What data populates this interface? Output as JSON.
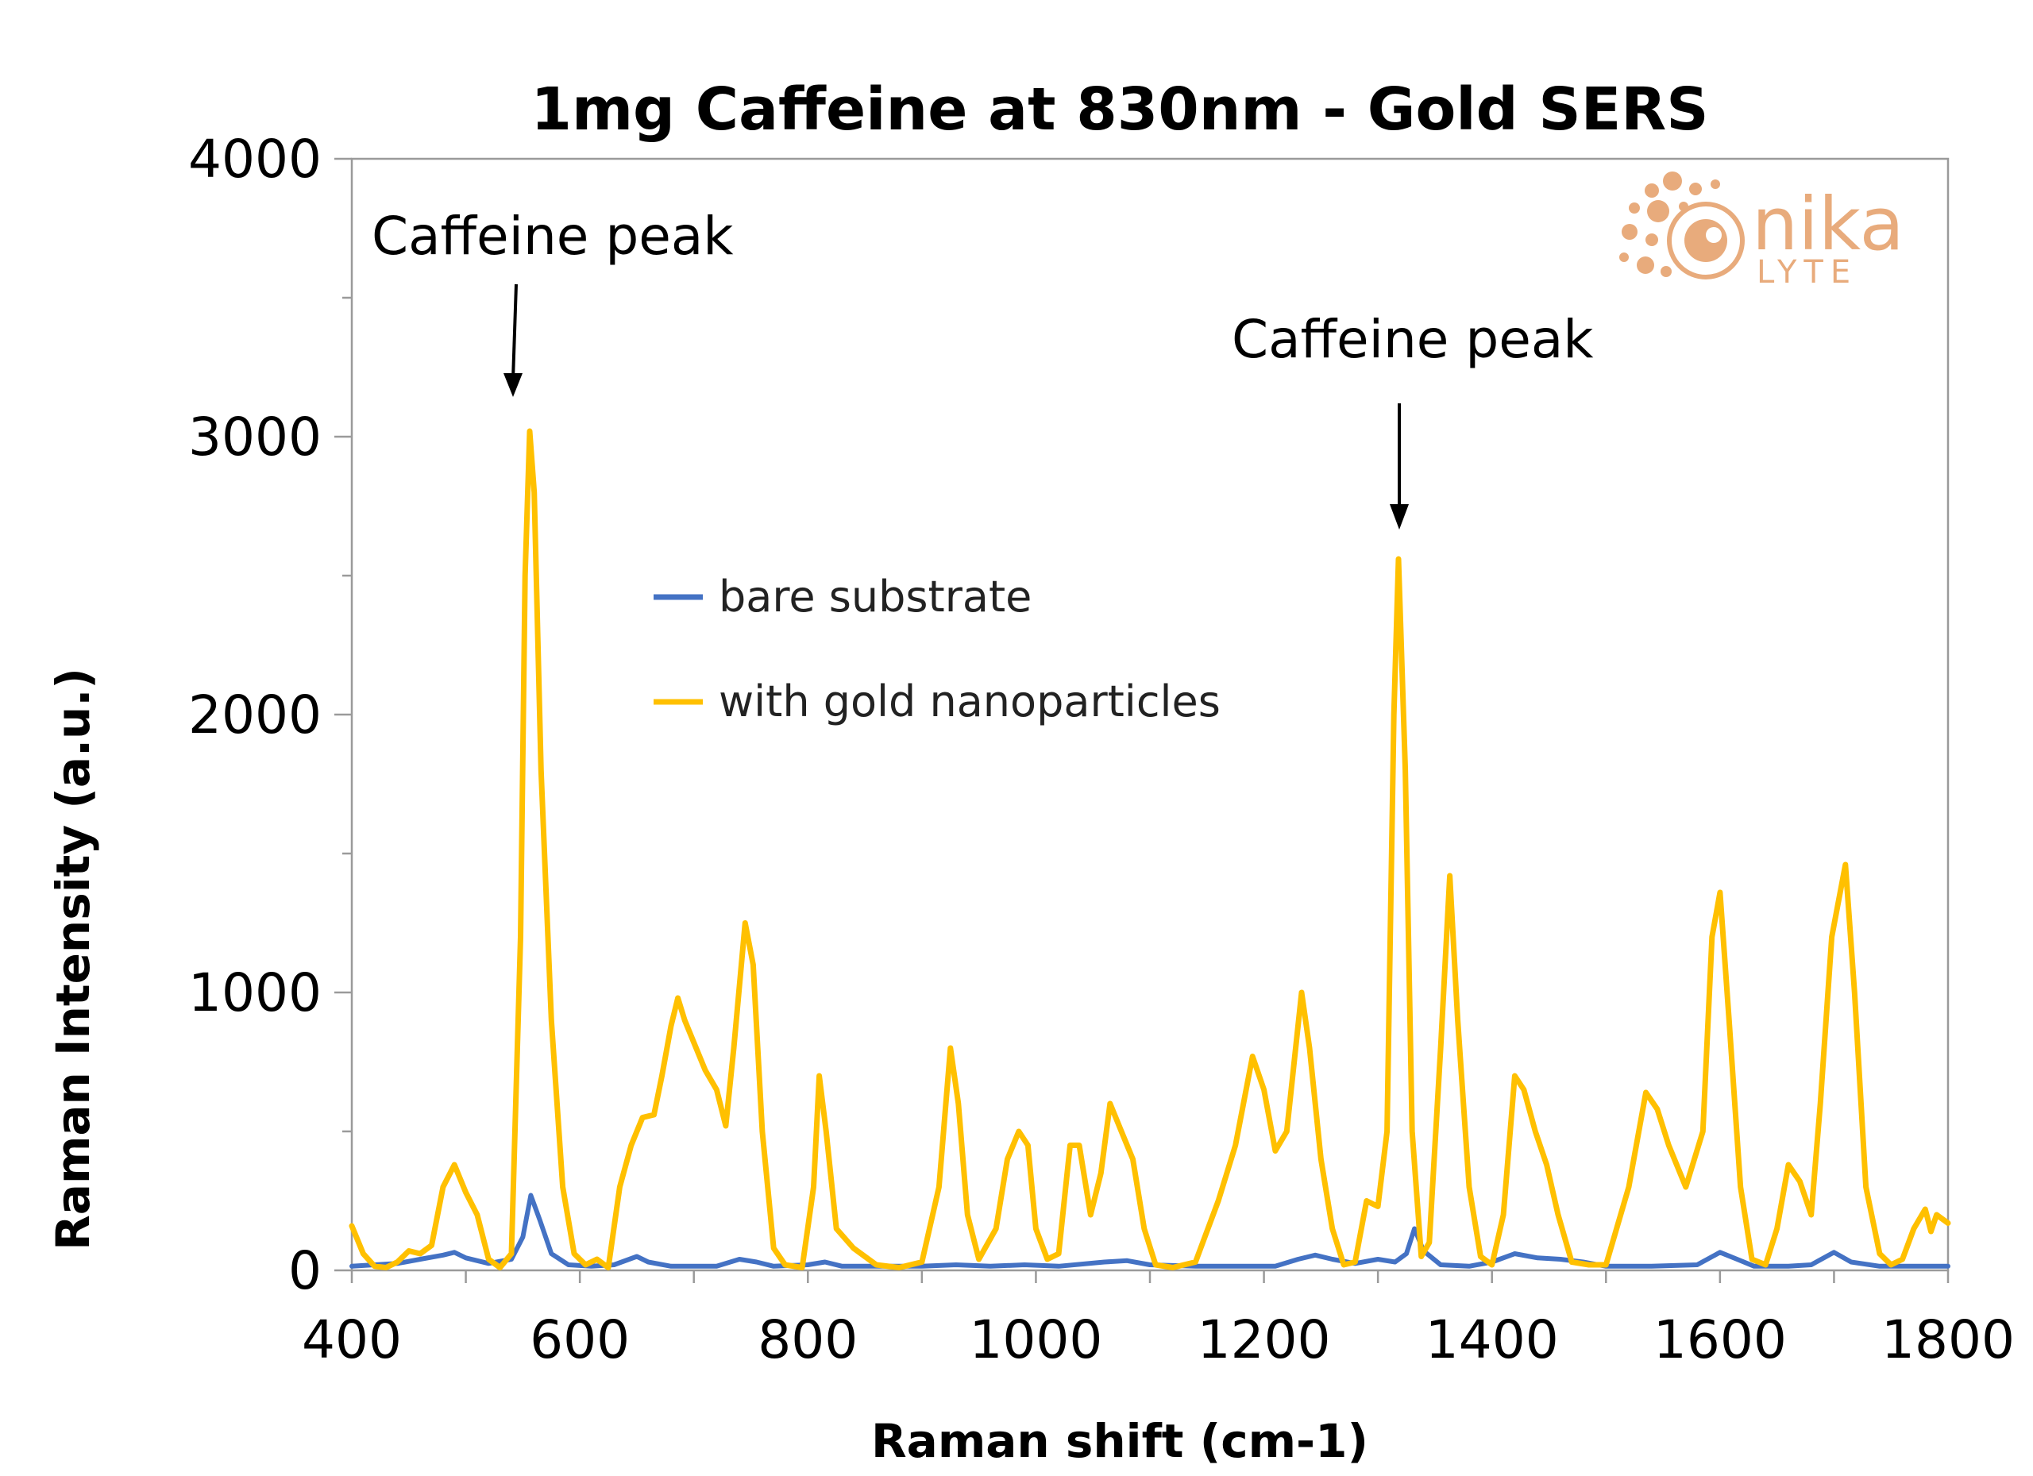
{
  "chart_data": {
    "type": "line",
    "title": "1mg Caffeine at 830nm - Gold SERS",
    "xlabel": "Raman shift  (cm-1)",
    "ylabel": "Raman Intensity (a.u.)",
    "xlim": [
      400,
      1800
    ],
    "ylim": [
      0,
      4000
    ],
    "x_ticks": [
      400,
      600,
      800,
      1000,
      1200,
      1400,
      1600,
      1800
    ],
    "y_ticks": [
      0,
      1000,
      2000,
      3000,
      4000
    ],
    "y_minor_ticks": [
      500,
      1500,
      2500,
      3500
    ],
    "grid": false,
    "legend_position": "center-left",
    "series": [
      {
        "name": "bare substrate",
        "color": "#4472c4",
        "points": [
          [
            400,
            15
          ],
          [
            420,
            20
          ],
          [
            440,
            25
          ],
          [
            460,
            40
          ],
          [
            480,
            55
          ],
          [
            490,
            65
          ],
          [
            500,
            45
          ],
          [
            520,
            25
          ],
          [
            540,
            40
          ],
          [
            550,
            120
          ],
          [
            557,
            270
          ],
          [
            565,
            180
          ],
          [
            575,
            60
          ],
          [
            590,
            20
          ],
          [
            610,
            15
          ],
          [
            630,
            20
          ],
          [
            650,
            50
          ],
          [
            660,
            30
          ],
          [
            680,
            15
          ],
          [
            700,
            15
          ],
          [
            720,
            15
          ],
          [
            740,
            40
          ],
          [
            755,
            30
          ],
          [
            770,
            15
          ],
          [
            800,
            20
          ],
          [
            815,
            30
          ],
          [
            830,
            15
          ],
          [
            860,
            15
          ],
          [
            900,
            15
          ],
          [
            930,
            20
          ],
          [
            960,
            15
          ],
          [
            990,
            20
          ],
          [
            1020,
            15
          ],
          [
            1060,
            30
          ],
          [
            1080,
            35
          ],
          [
            1100,
            20
          ],
          [
            1140,
            15
          ],
          [
            1180,
            15
          ],
          [
            1210,
            15
          ],
          [
            1230,
            40
          ],
          [
            1245,
            55
          ],
          [
            1260,
            40
          ],
          [
            1280,
            25
          ],
          [
            1300,
            40
          ],
          [
            1315,
            30
          ],
          [
            1325,
            60
          ],
          [
            1332,
            150
          ],
          [
            1340,
            70
          ],
          [
            1355,
            20
          ],
          [
            1380,
            15
          ],
          [
            1400,
            30
          ],
          [
            1420,
            60
          ],
          [
            1440,
            45
          ],
          [
            1460,
            40
          ],
          [
            1480,
            30
          ],
          [
            1500,
            15
          ],
          [
            1540,
            15
          ],
          [
            1580,
            20
          ],
          [
            1600,
            65
          ],
          [
            1615,
            40
          ],
          [
            1630,
            15
          ],
          [
            1660,
            15
          ],
          [
            1680,
            20
          ],
          [
            1700,
            65
          ],
          [
            1715,
            30
          ],
          [
            1740,
            15
          ],
          [
            1770,
            15
          ],
          [
            1800,
            15
          ]
        ]
      },
      {
        "name": "with gold nanoparticles",
        "color": "#ffc000",
        "points": [
          [
            400,
            160
          ],
          [
            410,
            60
          ],
          [
            420,
            15
          ],
          [
            430,
            10
          ],
          [
            440,
            30
          ],
          [
            450,
            70
          ],
          [
            460,
            60
          ],
          [
            470,
            90
          ],
          [
            480,
            300
          ],
          [
            490,
            380
          ],
          [
            500,
            280
          ],
          [
            510,
            200
          ],
          [
            520,
            40
          ],
          [
            530,
            10
          ],
          [
            540,
            60
          ],
          [
            548,
            1200
          ],
          [
            552,
            2500
          ],
          [
            556,
            3020
          ],
          [
            560,
            2800
          ],
          [
            566,
            1800
          ],
          [
            575,
            900
          ],
          [
            585,
            300
          ],
          [
            595,
            60
          ],
          [
            605,
            20
          ],
          [
            615,
            40
          ],
          [
            625,
            10
          ],
          [
            635,
            300
          ],
          [
            645,
            450
          ],
          [
            655,
            550
          ],
          [
            665,
            560
          ],
          [
            672,
            700
          ],
          [
            680,
            880
          ],
          [
            686,
            980
          ],
          [
            692,
            900
          ],
          [
            700,
            820
          ],
          [
            710,
            720
          ],
          [
            720,
            650
          ],
          [
            728,
            520
          ],
          [
            735,
            800
          ],
          [
            745,
            1250
          ],
          [
            752,
            1100
          ],
          [
            760,
            500
          ],
          [
            770,
            80
          ],
          [
            780,
            20
          ],
          [
            795,
            10
          ],
          [
            805,
            300
          ],
          [
            810,
            700
          ],
          [
            816,
            500
          ],
          [
            825,
            150
          ],
          [
            840,
            80
          ],
          [
            860,
            20
          ],
          [
            880,
            10
          ],
          [
            900,
            30
          ],
          [
            915,
            300
          ],
          [
            925,
            800
          ],
          [
            932,
            600
          ],
          [
            940,
            200
          ],
          [
            950,
            40
          ],
          [
            965,
            150
          ],
          [
            975,
            400
          ],
          [
            985,
            500
          ],
          [
            993,
            450
          ],
          [
            1000,
            150
          ],
          [
            1010,
            40
          ],
          [
            1020,
            60
          ],
          [
            1030,
            450
          ],
          [
            1038,
            450
          ],
          [
            1048,
            200
          ],
          [
            1057,
            350
          ],
          [
            1065,
            600
          ],
          [
            1075,
            500
          ],
          [
            1085,
            400
          ],
          [
            1095,
            150
          ],
          [
            1105,
            20
          ],
          [
            1120,
            10
          ],
          [
            1140,
            30
          ],
          [
            1160,
            250
          ],
          [
            1175,
            450
          ],
          [
            1190,
            770
          ],
          [
            1200,
            650
          ],
          [
            1210,
            430
          ],
          [
            1220,
            500
          ],
          [
            1233,
            1000
          ],
          [
            1240,
            800
          ],
          [
            1250,
            400
          ],
          [
            1260,
            150
          ],
          [
            1270,
            20
          ],
          [
            1280,
            30
          ],
          [
            1290,
            250
          ],
          [
            1300,
            230
          ],
          [
            1308,
            500
          ],
          [
            1314,
            2000
          ],
          [
            1318,
            2560
          ],
          [
            1324,
            1800
          ],
          [
            1330,
            500
          ],
          [
            1338,
            50
          ],
          [
            1345,
            100
          ],
          [
            1355,
            800
          ],
          [
            1363,
            1420
          ],
          [
            1370,
            900
          ],
          [
            1380,
            300
          ],
          [
            1390,
            50
          ],
          [
            1400,
            20
          ],
          [
            1410,
            200
          ],
          [
            1420,
            700
          ],
          [
            1428,
            650
          ],
          [
            1438,
            500
          ],
          [
            1448,
            380
          ],
          [
            1458,
            200
          ],
          [
            1470,
            30
          ],
          [
            1485,
            20
          ],
          [
            1500,
            20
          ],
          [
            1520,
            300
          ],
          [
            1535,
            640
          ],
          [
            1545,
            580
          ],
          [
            1555,
            450
          ],
          [
            1570,
            300
          ],
          [
            1585,
            500
          ],
          [
            1593,
            1200
          ],
          [
            1600,
            1360
          ],
          [
            1608,
            900
          ],
          [
            1618,
            300
          ],
          [
            1628,
            40
          ],
          [
            1640,
            20
          ],
          [
            1650,
            150
          ],
          [
            1660,
            380
          ],
          [
            1670,
            320
          ],
          [
            1680,
            200
          ],
          [
            1688,
            600
          ],
          [
            1698,
            1200
          ],
          [
            1710,
            1460
          ],
          [
            1718,
            1000
          ],
          [
            1728,
            300
          ],
          [
            1740,
            60
          ],
          [
            1750,
            20
          ],
          [
            1760,
            40
          ],
          [
            1770,
            150
          ],
          [
            1780,
            220
          ],
          [
            1785,
            140
          ],
          [
            1790,
            200
          ],
          [
            1800,
            170
          ]
        ]
      }
    ],
    "annotations": [
      {
        "text": "Caffeine peak",
        "x": 556
      },
      {
        "text": "Caffeine peak",
        "x": 1318
      }
    ]
  },
  "logo": {
    "brand": "nika",
    "sub": "LYTE",
    "color": "#e6a36e"
  }
}
